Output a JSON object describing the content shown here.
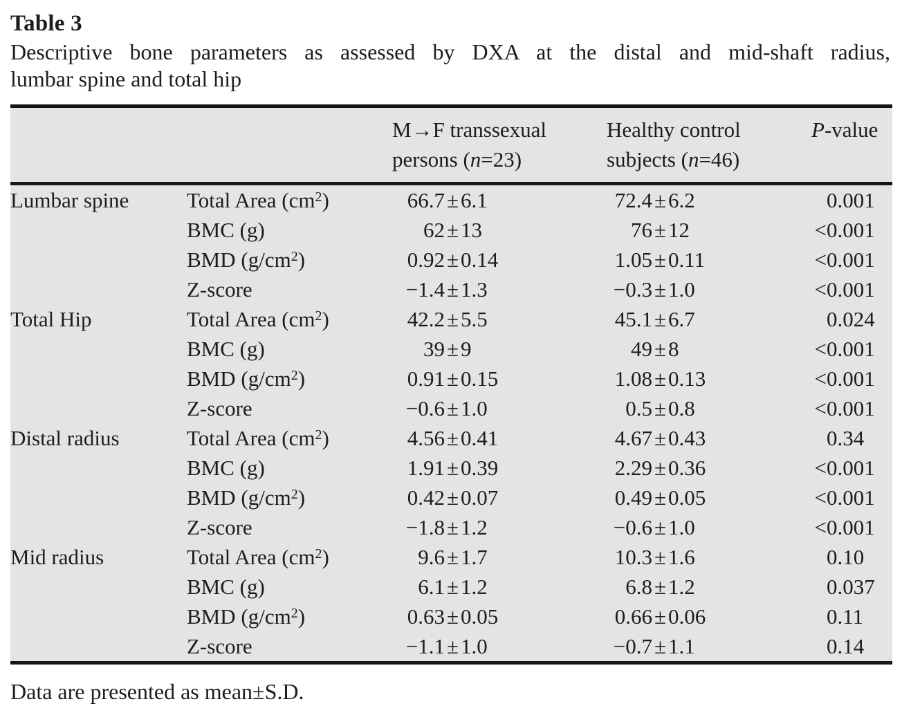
{
  "page": {
    "label": "Table 3",
    "caption_line1": "Descriptive bone parameters as assessed by DXA at the distal and mid-shaft radius,",
    "caption_line2": "lumbar spine and total hip",
    "footnote": "Data are presented as mean±S.D."
  },
  "table": {
    "header": {
      "mf": {
        "line1": "M→F transsexual",
        "line2_prefix": "persons (",
        "n_symbol": "n",
        "line2_suffix": "=23)"
      },
      "control": {
        "line1": "Healthy control",
        "line2_prefix": "subjects (",
        "n_symbol": "n",
        "line2_suffix": "=46)"
      },
      "pvalue": {
        "symbol": "P",
        "suffix": "-value"
      }
    },
    "rows": [
      {
        "region": "Lumbar spine",
        "parameter": "Total Area (cm²)",
        "mf": "66.7±6.1",
        "control": "72.4±6.2",
        "p": "0.001"
      },
      {
        "region": "",
        "parameter": "BMC (g)",
        "mf": "62±13",
        "control": "76±12",
        "p": "<0.001"
      },
      {
        "region": "",
        "parameter": "BMD (g/cm²)",
        "mf": "0.92±0.14",
        "control": "1.05±0.11",
        "p": "<0.001"
      },
      {
        "region": "",
        "parameter": "Z-score",
        "mf": "−1.4±1.3",
        "control": "−0.3±1.0",
        "p": "<0.001"
      },
      {
        "region": "Total Hip",
        "parameter": "Total Area (cm²)",
        "mf": "42.2±5.5",
        "control": "45.1±6.7",
        "p": "0.024"
      },
      {
        "region": "",
        "parameter": "BMC (g)",
        "mf": "39±9",
        "control": "49±8",
        "p": "<0.001"
      },
      {
        "region": "",
        "parameter": "BMD (g/cm²)",
        "mf": "0.91±0.15",
        "control": "1.08±0.13",
        "p": "<0.001"
      },
      {
        "region": "",
        "parameter": "Z-score",
        "mf": "−0.6±1.0",
        "control": "0.5±0.8",
        "p": "<0.001"
      },
      {
        "region": "Distal radius",
        "parameter": "Total Area (cm²)",
        "mf": "4.56±0.41",
        "control": "4.67±0.43",
        "p": "0.34"
      },
      {
        "region": "",
        "parameter": "BMC (g)",
        "mf": "1.91±0.39",
        "control": "2.29±0.36",
        "p": "<0.001"
      },
      {
        "region": "",
        "parameter": "BMD (g/cm²)",
        "mf": "0.42±0.07",
        "control": "0.49±0.05",
        "p": "<0.001"
      },
      {
        "region": "",
        "parameter": "Z-score",
        "mf": "−1.8±1.2",
        "control": "−0.6±1.0",
        "p": "<0.001"
      },
      {
        "region": "Mid radius",
        "parameter": "Total Area (cm²)",
        "mf": "9.6±1.7",
        "control": "10.3±1.6",
        "p": "0.10"
      },
      {
        "region": "",
        "parameter": "BMC (g)",
        "mf": "6.1±1.2",
        "control": "6.8±1.2",
        "p": "0.037"
      },
      {
        "region": "",
        "parameter": "BMD (g/cm²)",
        "mf": "0.63±0.05",
        "control": "0.66±0.06",
        "p": "0.11"
      },
      {
        "region": "",
        "parameter": "Z-score",
        "mf": "−1.1±1.0",
        "control": "−0.7±1.1",
        "p": "0.14"
      }
    ]
  }
}
